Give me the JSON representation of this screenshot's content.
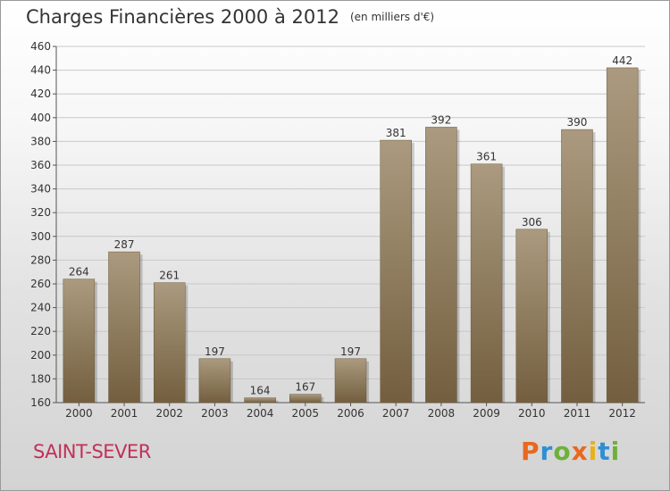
{
  "header": {
    "title": "Charges Financières 2000 à 2012",
    "unit": "(en milliers d'€)"
  },
  "footer": {
    "commune": "SAINT-SEVER",
    "logo": "Proxiti"
  },
  "colors": {
    "bar_top": "#ab9a7f",
    "bar_bottom": "#735f3f",
    "commune_text": "#c2305a"
  },
  "chart_data": {
    "type": "bar",
    "title": "Charges Financières 2000 à 2012",
    "subtitle": "(en milliers d'€)",
    "categories": [
      "2000",
      "2001",
      "2002",
      "2003",
      "2004",
      "2005",
      "2006",
      "2007",
      "2008",
      "2009",
      "2010",
      "2011",
      "2012"
    ],
    "values": [
      264,
      287,
      261,
      197,
      164,
      167,
      197,
      381,
      392,
      361,
      306,
      390,
      442
    ],
    "ylim": [
      160,
      460
    ],
    "yticks": [
      160,
      180,
      200,
      220,
      240,
      260,
      280,
      300,
      320,
      340,
      360,
      380,
      400,
      420,
      440,
      460
    ],
    "grid": true,
    "data_labels": true
  }
}
